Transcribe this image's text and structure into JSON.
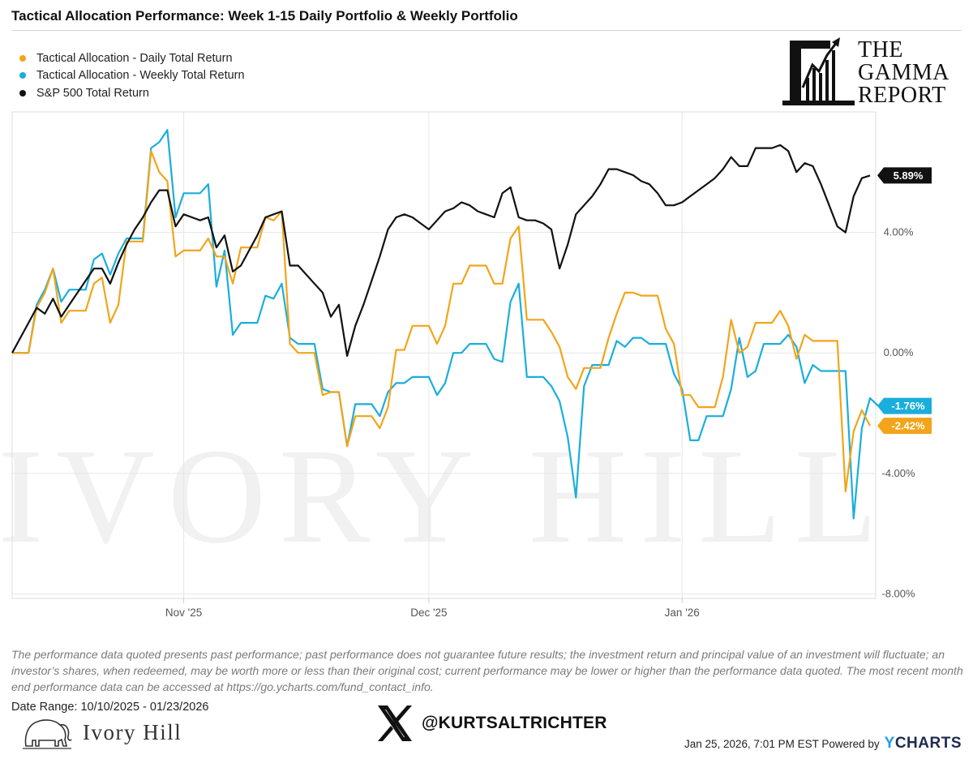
{
  "header": {
    "title": "Tactical Allocation Performance: Week 1-15 Daily Portfolio & Weekly Portfolio"
  },
  "brand": {
    "line1": "THE",
    "line2": "GAMMA",
    "line3": "REPORT",
    "watermark": "IVORY HILL"
  },
  "chart_data": {
    "type": "line",
    "x_axis": {
      "ticks": [
        "Nov '25",
        "Dec '25",
        "Jan '26"
      ],
      "range": [
        "10/10/2025",
        "01/23/2026"
      ]
    },
    "y_axis": {
      "ticks": [
        "4.00%",
        "0.00%",
        "-4.00%",
        "-8.00%"
      ],
      "ylim": [
        -8.15,
        8.0
      ],
      "position": "right"
    },
    "grid": true,
    "legend_position": "top-left",
    "series": [
      {
        "name": "Tactical Allocation - Daily Total Return",
        "color": "#f2a51a",
        "end_label": "-2.42%",
        "values": [
          0.0,
          0.0,
          0.0,
          1.5,
          2.0,
          2.8,
          1.0,
          1.4,
          1.4,
          1.4,
          2.3,
          2.5,
          1.0,
          1.6,
          3.7,
          3.7,
          3.7,
          6.7,
          6.0,
          5.7,
          3.2,
          3.4,
          3.4,
          3.4,
          3.8,
          3.2,
          3.2,
          2.3,
          3.5,
          3.5,
          3.5,
          4.5,
          4.4,
          4.7,
          0.3,
          0.0,
          0.0,
          0.0,
          -1.4,
          -1.3,
          -1.3,
          -3.1,
          -2.1,
          -2.1,
          -2.1,
          -2.5,
          -1.8,
          0.1,
          0.1,
          0.9,
          0.9,
          0.9,
          0.3,
          0.9,
          2.3,
          2.3,
          2.9,
          2.9,
          2.9,
          2.3,
          2.3,
          3.8,
          4.2,
          1.1,
          1.1,
          1.1,
          0.7,
          0.2,
          -0.8,
          -1.2,
          -0.5,
          -0.5,
          -0.5,
          0.5,
          1.3,
          2.0,
          2.0,
          1.9,
          1.9,
          1.9,
          0.8,
          0.3,
          -1.4,
          -1.4,
          -1.8,
          -1.8,
          -1.8,
          -0.8,
          1.1,
          0.0,
          0.2,
          1.0,
          1.0,
          1.0,
          1.4,
          0.9,
          -0.2,
          0.6,
          0.4,
          0.4,
          0.4,
          0.4,
          -4.6,
          -2.6,
          -1.9,
          -2.42
        ]
      },
      {
        "name": "Tactical Allocation - Weekly Total Return",
        "color": "#1aaedc",
        "end_label": "-1.76%",
        "values": [
          0.0,
          0.0,
          0.0,
          1.6,
          2.1,
          2.8,
          1.7,
          2.1,
          2.1,
          2.1,
          3.1,
          3.3,
          2.6,
          3.3,
          3.8,
          3.8,
          3.8,
          6.8,
          7.0,
          7.4,
          4.5,
          5.3,
          5.3,
          5.3,
          5.6,
          2.2,
          3.4,
          0.6,
          1.0,
          1.0,
          1.0,
          1.9,
          1.8,
          2.3,
          0.5,
          0.3,
          0.3,
          0.3,
          -1.2,
          -1.3,
          -1.3,
          -3.1,
          -1.7,
          -1.7,
          -1.7,
          -2.1,
          -1.3,
          -1.0,
          -1.0,
          -0.8,
          -0.8,
          -0.8,
          -1.4,
          -1.0,
          0.0,
          0.0,
          0.3,
          0.3,
          0.3,
          -0.2,
          -0.3,
          1.7,
          2.3,
          -0.8,
          -0.8,
          -0.8,
          -1.1,
          -1.6,
          -2.8,
          -4.8,
          -1.1,
          -0.4,
          -0.4,
          -0.4,
          0.4,
          0.2,
          0.5,
          0.5,
          0.3,
          0.3,
          0.3,
          -0.7,
          -1.2,
          -2.9,
          -2.9,
          -2.1,
          -2.1,
          -2.1,
          -1.2,
          0.5,
          -0.8,
          -0.6,
          0.3,
          0.3,
          0.3,
          0.6,
          0.2,
          -1.0,
          -0.4,
          -0.6,
          -0.6,
          -0.6,
          -0.6,
          -5.5,
          -2.5,
          -1.5,
          -1.76
        ]
      },
      {
        "name": "S&P 500 Total Return",
        "color": "#111111",
        "end_label": "5.89%",
        "values": [
          0.0,
          0.5,
          1.0,
          1.5,
          1.3,
          1.8,
          1.2,
          1.6,
          2.0,
          2.4,
          2.8,
          2.8,
          2.3,
          3.0,
          3.6,
          4.1,
          4.5,
          5.0,
          5.4,
          5.4,
          4.2,
          4.6,
          4.5,
          4.4,
          4.5,
          3.5,
          3.9,
          2.7,
          2.9,
          3.4,
          3.9,
          4.5,
          4.6,
          4.7,
          2.9,
          2.9,
          2.6,
          2.3,
          2.0,
          1.2,
          1.6,
          -0.1,
          0.9,
          1.6,
          2.4,
          3.2,
          4.1,
          4.5,
          4.6,
          4.5,
          4.3,
          4.1,
          4.4,
          4.7,
          4.8,
          5.0,
          4.9,
          4.7,
          4.6,
          4.5,
          5.3,
          5.5,
          4.5,
          4.4,
          4.4,
          4.3,
          4.1,
          2.8,
          3.6,
          4.6,
          4.9,
          5.2,
          5.6,
          6.1,
          6.1,
          6.0,
          5.9,
          5.7,
          5.6,
          5.3,
          4.9,
          4.9,
          5.0,
          5.2,
          5.4,
          5.6,
          5.8,
          6.1,
          6.5,
          6.2,
          6.2,
          6.8,
          6.8,
          6.8,
          6.9,
          6.7,
          6.0,
          6.3,
          6.2,
          5.6,
          4.9,
          4.2,
          4.0,
          5.2,
          5.8,
          5.89
        ]
      }
    ]
  },
  "footer": {
    "disclaimer": "The performance data quoted presents past performance; past performance does not guarantee future results; the investment return and principal value of an investment will fluctuate; an investor’s shares, when redeemed, may be worth more or less than their original cost; current performance may be lower or higher than the performance data quoted. The most recent month end performance data can be accessed at https://go.ycharts.com/fund_contact_info.",
    "date_range": "Date Range: 10/10/2025 - 01/23/2026",
    "company": "Ivory Hill",
    "social_handle": "@KURTSALTRICHTER",
    "timestamp": "Jan 25, 2026, 7:01 PM EST Powered by",
    "provider": "CHARTS",
    "provider_y": "Y"
  }
}
